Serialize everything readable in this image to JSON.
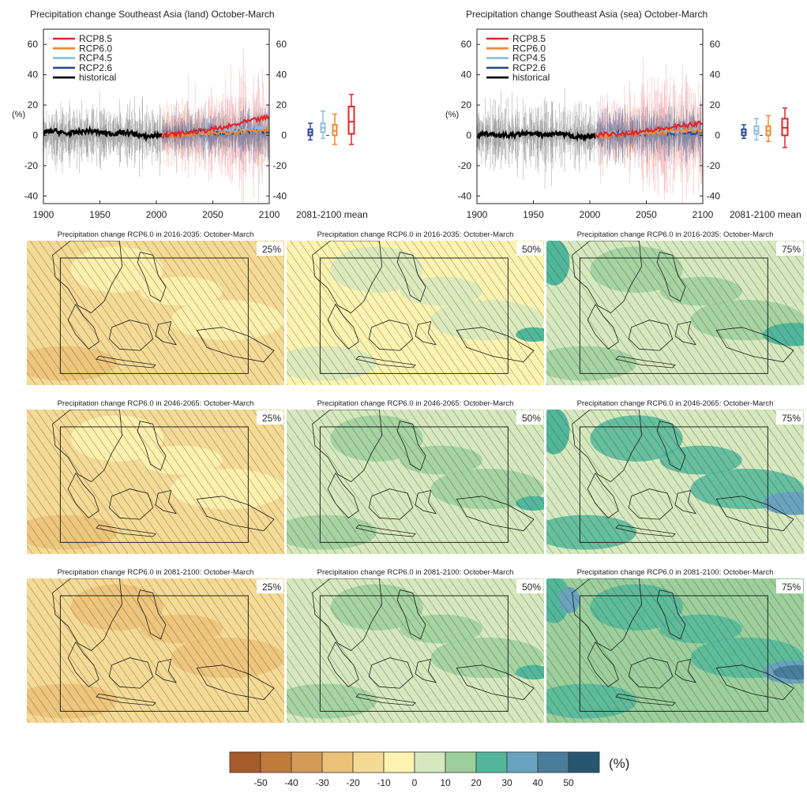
{
  "time_series": [
    {
      "title": "Precipitation change Southeast Asia (land) October-March",
      "ylabel": "(%)",
      "x_ticks": [
        "1900",
        "1950",
        "2000",
        "2050",
        "2100"
      ],
      "y_ticks": [
        "60",
        "40",
        "20",
        "0",
        "-20",
        "-40"
      ],
      "box_label": "2081-2100 mean",
      "legend": [
        {
          "name": "RCP8.5",
          "color": "#e0262b"
        },
        {
          "name": "RCP6.0",
          "color": "#f0872f"
        },
        {
          "name": "RCP4.5",
          "color": "#8cbde0"
        },
        {
          "name": "RCP2.6",
          "color": "#2c4a91"
        },
        {
          "name": "historical",
          "color": "#000000"
        }
      ]
    },
    {
      "title": "Precipitation change Southeast Asia (sea) October-March",
      "ylabel": "(%)",
      "x_ticks": [
        "1900",
        "1950",
        "2000",
        "2050",
        "2100"
      ],
      "y_ticks": [
        "60",
        "40",
        "20",
        "0",
        "-20",
        "-40"
      ],
      "box_label": "2081-2100 mean",
      "legend": [
        {
          "name": "RCP8.5",
          "color": "#e0262b"
        },
        {
          "name": "RCP6.0",
          "color": "#f0872f"
        },
        {
          "name": "RCP4.5",
          "color": "#8cbde0"
        },
        {
          "name": "RCP2.6",
          "color": "#2c4a91"
        },
        {
          "name": "historical",
          "color": "#000000"
        }
      ]
    }
  ],
  "maps": {
    "rows": [
      {
        "title": "Precipitation change RCP6.0 in 2016-2035: October-March"
      },
      {
        "title": "Precipitation change RCP6.0 in 2046-2065: October-March"
      },
      {
        "title": "Precipitation change RCP6.0 in 2081-2100: October-March"
      }
    ],
    "percentiles": [
      "25%",
      "50%",
      "75%"
    ]
  },
  "colorbar": {
    "unit": "(%)",
    "colors": [
      "#a65b2a",
      "#c07a3a",
      "#d69a58",
      "#ecc178",
      "#f5da95",
      "#fdf3b0",
      "#d6e8bd",
      "#9ccf9c",
      "#52b79a",
      "#6aa3bf",
      "#4a7d99",
      "#275670"
    ],
    "ticks": [
      "-50",
      "-40",
      "-30",
      "-20",
      "-10",
      "0",
      "10",
      "20",
      "30",
      "40",
      "50"
    ]
  },
  "chart_data": [
    {
      "type": "line",
      "title": "Precipitation change Southeast Asia (land) October-March",
      "ylabel": "(%)",
      "xlim": [
        1900,
        2100
      ],
      "ylim": [
        -45,
        70
      ],
      "series": [
        {
          "name": "historical",
          "x": [
            1900,
            1910,
            1920,
            1930,
            1940,
            1950,
            1960,
            1970,
            1980,
            1990,
            2000,
            2005
          ],
          "values": [
            2,
            3,
            1,
            2,
            3,
            2,
            1,
            2,
            1,
            -1,
            0,
            0
          ]
        },
        {
          "name": "RCP2.6",
          "x": [
            2005,
            2020,
            2040,
            2060,
            2080,
            2100
          ],
          "values": [
            0,
            1,
            2,
            2,
            3,
            3
          ]
        },
        {
          "name": "RCP4.5",
          "x": [
            2005,
            2020,
            2040,
            2060,
            2080,
            2100
          ],
          "values": [
            0,
            1,
            2,
            3,
            4,
            5
          ]
        },
        {
          "name": "RCP6.0",
          "x": [
            2005,
            2020,
            2040,
            2060,
            2080,
            2100
          ],
          "values": [
            0,
            0,
            1,
            2,
            3,
            4
          ]
        },
        {
          "name": "RCP8.5",
          "x": [
            2005,
            2020,
            2040,
            2060,
            2080,
            2100
          ],
          "values": [
            0,
            1,
            3,
            5,
            9,
            12
          ]
        }
      ],
      "boxplots_2081_2100": [
        {
          "name": "RCP2.6",
          "min": -3,
          "q1": 0,
          "median": 2,
          "q3": 4,
          "max": 8
        },
        {
          "name": "RCP4.5",
          "min": -2,
          "q1": 2,
          "median": 5,
          "q3": 8,
          "max": 16
        },
        {
          "name": "RCP6.0",
          "min": -6,
          "q1": 0,
          "median": 3,
          "q3": 7,
          "max": 14
        },
        {
          "name": "RCP8.5",
          "min": -6,
          "q1": 1,
          "median": 9,
          "q3": 19,
          "max": 27
        }
      ]
    },
    {
      "type": "line",
      "title": "Precipitation change Southeast Asia (sea) October-March",
      "ylabel": "(%)",
      "xlim": [
        1900,
        2100
      ],
      "ylim": [
        -45,
        70
      ],
      "series": [
        {
          "name": "historical",
          "x": [
            1900,
            1910,
            1920,
            1930,
            1940,
            1950,
            1960,
            1970,
            1980,
            1990,
            2000,
            2005
          ],
          "values": [
            0,
            1,
            0,
            0,
            1,
            1,
            0,
            1,
            0,
            -1,
            -1,
            0
          ]
        },
        {
          "name": "RCP2.6",
          "x": [
            2005,
            2020,
            2040,
            2060,
            2080,
            2100
          ],
          "values": [
            0,
            1,
            1,
            2,
            2,
            2
          ]
        },
        {
          "name": "RCP4.5",
          "x": [
            2005,
            2020,
            2040,
            2060,
            2080,
            2100
          ],
          "values": [
            0,
            1,
            2,
            2,
            3,
            4
          ]
        },
        {
          "name": "RCP6.0",
          "x": [
            2005,
            2020,
            2040,
            2060,
            2080,
            2100
          ],
          "values": [
            0,
            0,
            1,
            2,
            3,
            3
          ]
        },
        {
          "name": "RCP8.5",
          "x": [
            2005,
            2020,
            2040,
            2060,
            2080,
            2100
          ],
          "values": [
            0,
            1,
            2,
            4,
            6,
            8
          ]
        }
      ],
      "boxplots_2081_2100": [
        {
          "name": "RCP2.6",
          "min": -2,
          "q1": 0,
          "median": 2,
          "q3": 4,
          "max": 7
        },
        {
          "name": "RCP4.5",
          "min": -3,
          "q1": 1,
          "median": 3,
          "q3": 6,
          "max": 11
        },
        {
          "name": "RCP6.0",
          "min": -4,
          "q1": 0,
          "median": 3,
          "q3": 6,
          "max": 13
        },
        {
          "name": "RCP8.5",
          "min": -8,
          "q1": 0,
          "median": 5,
          "q3": 11,
          "max": 18
        }
      ]
    }
  ]
}
